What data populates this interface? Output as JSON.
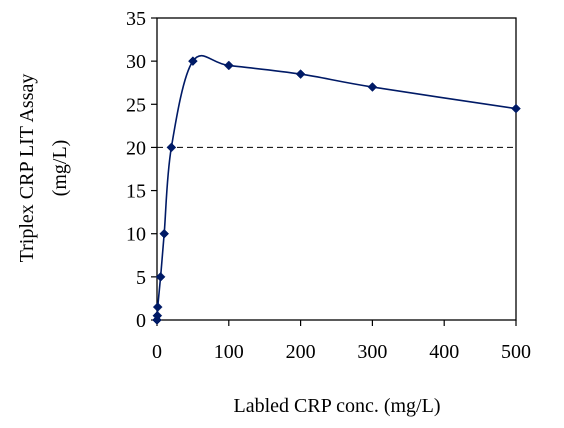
{
  "chart_data": {
    "type": "line",
    "title": "",
    "xlabel": "Labled CRP conc. (mg/L)",
    "ylabel_line1": "Triplex CRP LIT Assay",
    "ylabel_line2": "(mg/L)",
    "xlim": [
      0,
      500
    ],
    "ylim": [
      0,
      35
    ],
    "x_ticks": [
      0,
      100,
      200,
      300,
      400,
      500
    ],
    "y_ticks": [
      0,
      5,
      10,
      15,
      20,
      25,
      30,
      35
    ],
    "grid": false,
    "legend": "none",
    "reference_line": {
      "y": 20,
      "style": "dashed"
    },
    "series": [
      {
        "color": "#001a66",
        "marker": "diamond",
        "smooth": true,
        "points": [
          {
            "x": 0,
            "y": 0
          },
          {
            "x": 0.5,
            "y": 0.5
          },
          {
            "x": 1,
            "y": 1.5
          },
          {
            "x": 5,
            "y": 5
          },
          {
            "x": 10,
            "y": 10
          },
          {
            "x": 20,
            "y": 20
          },
          {
            "x": 50,
            "y": 30
          },
          {
            "x": 100,
            "y": 29.5
          },
          {
            "x": 200,
            "y": 28.5
          },
          {
            "x": 300,
            "y": 27
          },
          {
            "x": 500,
            "y": 24.5
          }
        ]
      }
    ]
  }
}
